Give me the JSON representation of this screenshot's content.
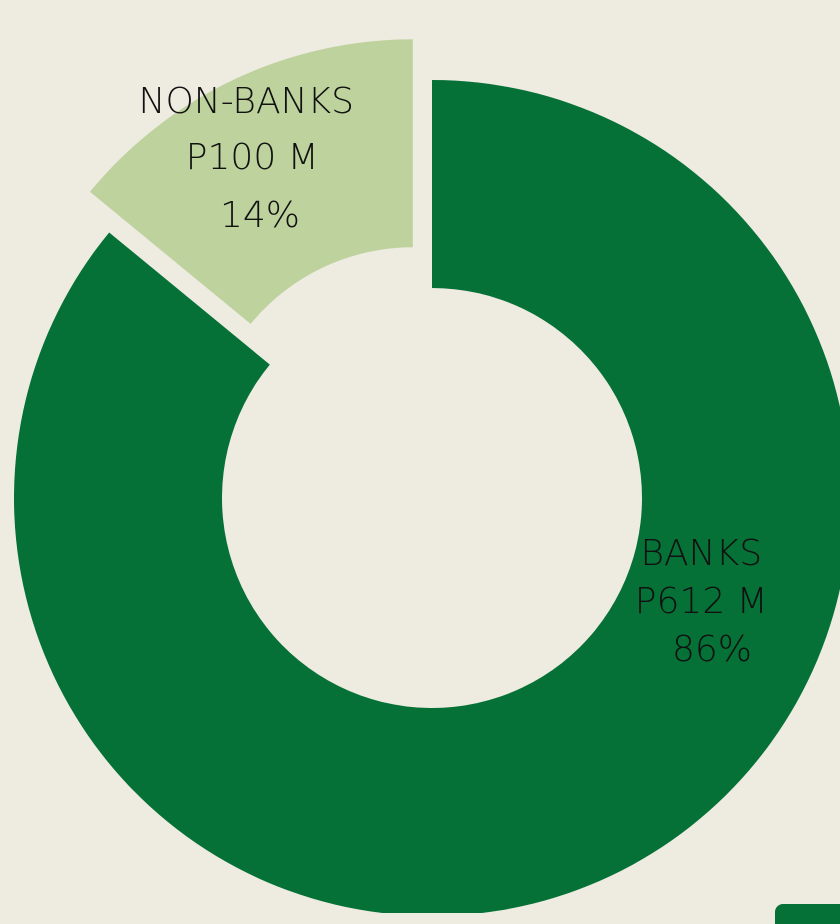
{
  "chart_data": {
    "type": "pie",
    "variant": "donut",
    "exploded_slice": "NON-BANKS",
    "slices": [
      {
        "name": "BANKS",
        "value": 612,
        "percent": 86,
        "color": "#057136",
        "label_lines": [
          "BANKS",
          "P612 M",
          "86%"
        ]
      },
      {
        "name": "NON-BANKS",
        "value": 100,
        "percent": 14,
        "color": "#BED29E",
        "label_lines": [
          "NON-BANKS",
          "P100 M",
          "14%"
        ]
      }
    ]
  },
  "colors": {
    "background": "#EEEBE1",
    "banks": "#057136",
    "non_banks": "#BED29E",
    "label_text": "#111111",
    "corner_tab": "#057136"
  }
}
